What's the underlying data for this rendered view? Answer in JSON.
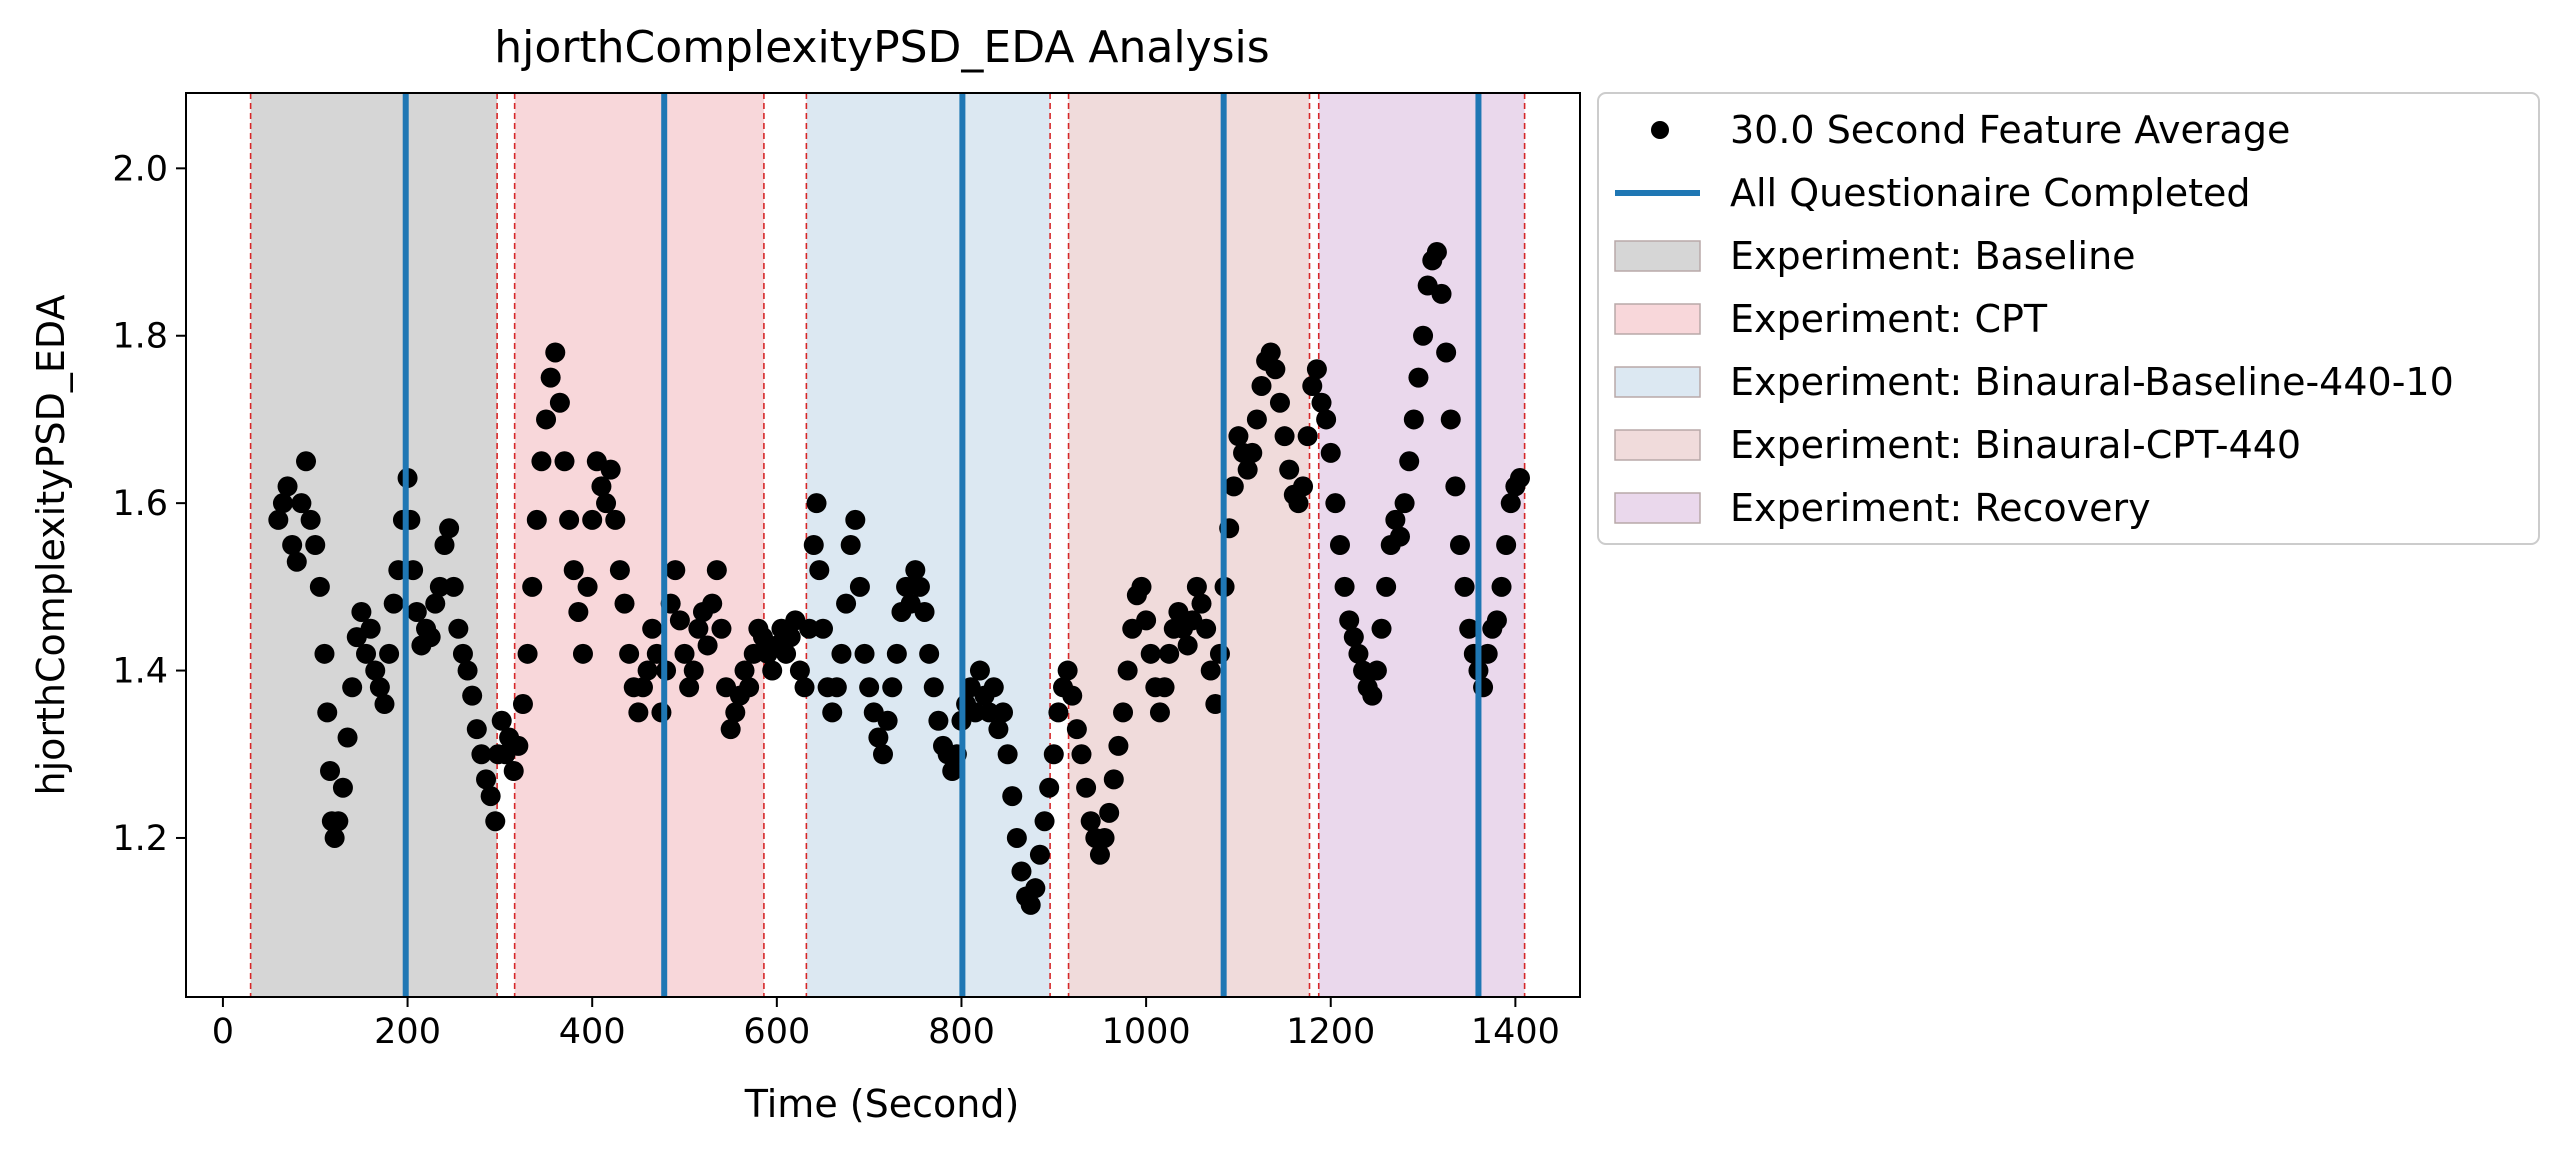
{
  "chart_data": {
    "type": "scatter",
    "title": "hjorthComplexityPSD_EDA Analysis",
    "xlabel": "Time (Second)",
    "ylabel": "hjorthComplexityPSD_EDA",
    "xlim": [
      -40,
      1470
    ],
    "ylim": [
      1.01,
      2.09
    ],
    "xticks": [
      0,
      200,
      400,
      600,
      800,
      1000,
      1200,
      1400
    ],
    "yticks": [
      1.2,
      1.4,
      1.6,
      1.8,
      2.0
    ],
    "xtick_labels": [
      "0",
      "200",
      "400",
      "600",
      "800",
      "1000",
      "1200",
      "1400"
    ],
    "ytick_labels": [
      "1.2",
      "1.4",
      "1.6",
      "1.8",
      "2.0"
    ],
    "grid": false,
    "legend_position": "outside-upper-right",
    "legend": [
      {
        "label": "30.0 Second Feature Average",
        "kind": "marker",
        "color": "#000000"
      },
      {
        "label": "All Questionaire Completed",
        "kind": "line",
        "color": "#1f77b4"
      },
      {
        "label": "Experiment: Baseline",
        "kind": "patch",
        "color": "#d6d6d6"
      },
      {
        "label": "Experiment: CPT",
        "kind": "patch",
        "color": "#f8d7da"
      },
      {
        "label": "Experiment: Binaural-Baseline-440-10",
        "kind": "patch",
        "color": "#dce8f2"
      },
      {
        "label": "Experiment: Binaural-CPT-440",
        "kind": "patch",
        "color": "#f0dbdb"
      },
      {
        "label": "Experiment: Recovery",
        "kind": "patch",
        "color": "#ead8ec"
      }
    ],
    "phases": [
      {
        "name": "Baseline",
        "start": 30,
        "end": 297,
        "color": "#d6d6d6"
      },
      {
        "name": "CPT",
        "start": 316,
        "end": 586,
        "color": "#f8d7da"
      },
      {
        "name": "Binaural-Baseline-440-10",
        "start": 632,
        "end": 896,
        "color": "#dce8f2"
      },
      {
        "name": "Binaural-CPT-440",
        "start": 916,
        "end": 1177,
        "color": "#f0dbdb"
      },
      {
        "name": "Recovery",
        "start": 1187,
        "end": 1410,
        "color": "#ead8ec"
      }
    ],
    "boundary_lines": [
      30,
      297,
      316,
      586,
      632,
      896,
      916,
      1177,
      1187,
      1410
    ],
    "questionnaire_lines": [
      198,
      478,
      801,
      1084,
      1360
    ],
    "series": [
      {
        "name": "30.0 Second Feature Average",
        "color": "#000000",
        "points": [
          [
            60,
            1.58
          ],
          [
            65,
            1.6
          ],
          [
            70,
            1.62
          ],
          [
            75,
            1.55
          ],
          [
            80,
            1.53
          ],
          [
            85,
            1.6
          ],
          [
            90,
            1.65
          ],
          [
            95,
            1.58
          ],
          [
            100,
            1.55
          ],
          [
            105,
            1.5
          ],
          [
            110,
            1.42
          ],
          [
            113,
            1.35
          ],
          [
            116,
            1.28
          ],
          [
            118,
            1.22
          ],
          [
            121,
            1.2
          ],
          [
            125,
            1.22
          ],
          [
            130,
            1.26
          ],
          [
            135,
            1.32
          ],
          [
            140,
            1.38
          ],
          [
            145,
            1.44
          ],
          [
            150,
            1.47
          ],
          [
            155,
            1.42
          ],
          [
            160,
            1.45
          ],
          [
            165,
            1.4
          ],
          [
            170,
            1.38
          ],
          [
            175,
            1.36
          ],
          [
            180,
            1.42
          ],
          [
            185,
            1.48
          ],
          [
            190,
            1.52
          ],
          [
            195,
            1.58
          ],
          [
            200,
            1.63
          ],
          [
            203,
            1.58
          ],
          [
            206,
            1.52
          ],
          [
            210,
            1.47
          ],
          [
            215,
            1.43
          ],
          [
            220,
            1.45
          ],
          [
            225,
            1.44
          ],
          [
            230,
            1.48
          ],
          [
            235,
            1.5
          ],
          [
            240,
            1.55
          ],
          [
            245,
            1.57
          ],
          [
            250,
            1.5
          ],
          [
            255,
            1.45
          ],
          [
            260,
            1.42
          ],
          [
            265,
            1.4
          ],
          [
            270,
            1.37
          ],
          [
            275,
            1.33
          ],
          [
            280,
            1.3
          ],
          [
            285,
            1.27
          ],
          [
            290,
            1.25
          ],
          [
            295,
            1.22
          ],
          [
            298,
            1.3
          ],
          [
            302,
            1.34
          ],
          [
            306,
            1.3
          ],
          [
            310,
            1.32
          ],
          [
            315,
            1.28
          ],
          [
            320,
            1.31
          ],
          [
            325,
            1.36
          ],
          [
            330,
            1.42
          ],
          [
            335,
            1.5
          ],
          [
            340,
            1.58
          ],
          [
            345,
            1.65
          ],
          [
            350,
            1.7
          ],
          [
            355,
            1.75
          ],
          [
            360,
            1.78
          ],
          [
            365,
            1.72
          ],
          [
            370,
            1.65
          ],
          [
            375,
            1.58
          ],
          [
            380,
            1.52
          ],
          [
            385,
            1.47
          ],
          [
            390,
            1.42
          ],
          [
            395,
            1.5
          ],
          [
            400,
            1.58
          ],
          [
            405,
            1.65
          ],
          [
            410,
            1.62
          ],
          [
            415,
            1.6
          ],
          [
            420,
            1.64
          ],
          [
            425,
            1.58
          ],
          [
            430,
            1.52
          ],
          [
            435,
            1.48
          ],
          [
            440,
            1.42
          ],
          [
            445,
            1.38
          ],
          [
            450,
            1.35
          ],
          [
            455,
            1.38
          ],
          [
            460,
            1.4
          ],
          [
            465,
            1.45
          ],
          [
            470,
            1.42
          ],
          [
            475,
            1.35
          ],
          [
            480,
            1.4
          ],
          [
            485,
            1.48
          ],
          [
            490,
            1.52
          ],
          [
            495,
            1.46
          ],
          [
            500,
            1.42
          ],
          [
            505,
            1.38
          ],
          [
            510,
            1.4
          ],
          [
            515,
            1.45
          ],
          [
            520,
            1.47
          ],
          [
            525,
            1.43
          ],
          [
            530,
            1.48
          ],
          [
            535,
            1.52
          ],
          [
            540,
            1.45
          ],
          [
            545,
            1.38
          ],
          [
            550,
            1.33
          ],
          [
            555,
            1.35
          ],
          [
            560,
            1.37
          ],
          [
            565,
            1.4
          ],
          [
            570,
            1.38
          ],
          [
            575,
            1.42
          ],
          [
            580,
            1.45
          ],
          [
            585,
            1.44
          ],
          [
            590,
            1.42
          ],
          [
            595,
            1.4
          ],
          [
            600,
            1.43
          ],
          [
            605,
            1.45
          ],
          [
            610,
            1.42
          ],
          [
            615,
            1.44
          ],
          [
            620,
            1.46
          ],
          [
            625,
            1.4
          ],
          [
            630,
            1.38
          ],
          [
            635,
            1.45
          ],
          [
            640,
            1.55
          ],
          [
            643,
            1.6
          ],
          [
            646,
            1.52
          ],
          [
            650,
            1.45
          ],
          [
            655,
            1.38
          ],
          [
            660,
            1.35
          ],
          [
            665,
            1.38
          ],
          [
            670,
            1.42
          ],
          [
            675,
            1.48
          ],
          [
            680,
            1.55
          ],
          [
            685,
            1.58
          ],
          [
            690,
            1.5
          ],
          [
            695,
            1.42
          ],
          [
            700,
            1.38
          ],
          [
            705,
            1.35
          ],
          [
            710,
            1.32
          ],
          [
            715,
            1.3
          ],
          [
            720,
            1.34
          ],
          [
            725,
            1.38
          ],
          [
            730,
            1.42
          ],
          [
            735,
            1.47
          ],
          [
            740,
            1.5
          ],
          [
            745,
            1.48
          ],
          [
            750,
            1.52
          ],
          [
            755,
            1.5
          ],
          [
            760,
            1.47
          ],
          [
            765,
            1.42
          ],
          [
            770,
            1.38
          ],
          [
            775,
            1.34
          ],
          [
            780,
            1.31
          ],
          [
            785,
            1.3
          ],
          [
            790,
            1.28
          ],
          [
            795,
            1.3
          ],
          [
            800,
            1.34
          ],
          [
            805,
            1.36
          ],
          [
            810,
            1.38
          ],
          [
            815,
            1.35
          ],
          [
            820,
            1.4
          ],
          [
            825,
            1.37
          ],
          [
            830,
            1.35
          ],
          [
            835,
            1.38
          ],
          [
            840,
            1.33
          ],
          [
            845,
            1.35
          ],
          [
            850,
            1.3
          ],
          [
            855,
            1.25
          ],
          [
            860,
            1.2
          ],
          [
            865,
            1.16
          ],
          [
            870,
            1.13
          ],
          [
            875,
            1.12
          ],
          [
            880,
            1.14
          ],
          [
            885,
            1.18
          ],
          [
            890,
            1.22
          ],
          [
            895,
            1.26
          ],
          [
            900,
            1.3
          ],
          [
            905,
            1.35
          ],
          [
            910,
            1.38
          ],
          [
            915,
            1.4
          ],
          [
            920,
            1.37
          ],
          [
            925,
            1.33
          ],
          [
            930,
            1.3
          ],
          [
            935,
            1.26
          ],
          [
            940,
            1.22
          ],
          [
            945,
            1.2
          ],
          [
            950,
            1.18
          ],
          [
            955,
            1.2
          ],
          [
            960,
            1.23
          ],
          [
            965,
            1.27
          ],
          [
            970,
            1.31
          ],
          [
            975,
            1.35
          ],
          [
            980,
            1.4
          ],
          [
            985,
            1.45
          ],
          [
            990,
            1.49
          ],
          [
            995,
            1.5
          ],
          [
            1000,
            1.46
          ],
          [
            1005,
            1.42
          ],
          [
            1010,
            1.38
          ],
          [
            1015,
            1.35
          ],
          [
            1020,
            1.38
          ],
          [
            1025,
            1.42
          ],
          [
            1030,
            1.45
          ],
          [
            1035,
            1.47
          ],
          [
            1040,
            1.45
          ],
          [
            1045,
            1.43
          ],
          [
            1050,
            1.46
          ],
          [
            1055,
            1.5
          ],
          [
            1060,
            1.48
          ],
          [
            1065,
            1.45
          ],
          [
            1070,
            1.4
          ],
          [
            1075,
            1.36
          ],
          [
            1080,
            1.42
          ],
          [
            1085,
            1.5
          ],
          [
            1090,
            1.57
          ],
          [
            1095,
            1.62
          ],
          [
            1100,
            1.68
          ],
          [
            1105,
            1.66
          ],
          [
            1110,
            1.64
          ],
          [
            1115,
            1.66
          ],
          [
            1120,
            1.7
          ],
          [
            1125,
            1.74
          ],
          [
            1130,
            1.77
          ],
          [
            1135,
            1.78
          ],
          [
            1140,
            1.76
          ],
          [
            1145,
            1.72
          ],
          [
            1150,
            1.68
          ],
          [
            1155,
            1.64
          ],
          [
            1160,
            1.61
          ],
          [
            1165,
            1.6
          ],
          [
            1170,
            1.62
          ],
          [
            1175,
            1.68
          ],
          [
            1180,
            1.74
          ],
          [
            1185,
            1.76
          ],
          [
            1190,
            1.72
          ],
          [
            1195,
            1.7
          ],
          [
            1200,
            1.66
          ],
          [
            1205,
            1.6
          ],
          [
            1210,
            1.55
          ],
          [
            1215,
            1.5
          ],
          [
            1220,
            1.46
          ],
          [
            1225,
            1.44
          ],
          [
            1230,
            1.42
          ],
          [
            1235,
            1.4
          ],
          [
            1240,
            1.38
          ],
          [
            1245,
            1.37
          ],
          [
            1250,
            1.4
          ],
          [
            1255,
            1.45
          ],
          [
            1260,
            1.5
          ],
          [
            1265,
            1.55
          ],
          [
            1270,
            1.58
          ],
          [
            1275,
            1.56
          ],
          [
            1280,
            1.6
          ],
          [
            1285,
            1.65
          ],
          [
            1290,
            1.7
          ],
          [
            1295,
            1.75
          ],
          [
            1300,
            1.8
          ],
          [
            1305,
            1.86
          ],
          [
            1310,
            1.89
          ],
          [
            1315,
            1.9
          ],
          [
            1320,
            1.85
          ],
          [
            1325,
            1.78
          ],
          [
            1330,
            1.7
          ],
          [
            1335,
            1.62
          ],
          [
            1340,
            1.55
          ],
          [
            1345,
            1.5
          ],
          [
            1350,
            1.45
          ],
          [
            1355,
            1.42
          ],
          [
            1360,
            1.4
          ],
          [
            1365,
            1.38
          ],
          [
            1370,
            1.42
          ],
          [
            1375,
            1.45
          ],
          [
            1380,
            1.46
          ],
          [
            1385,
            1.5
          ],
          [
            1390,
            1.55
          ],
          [
            1395,
            1.6
          ],
          [
            1400,
            1.62
          ],
          [
            1405,
            1.63
          ]
        ]
      }
    ]
  }
}
